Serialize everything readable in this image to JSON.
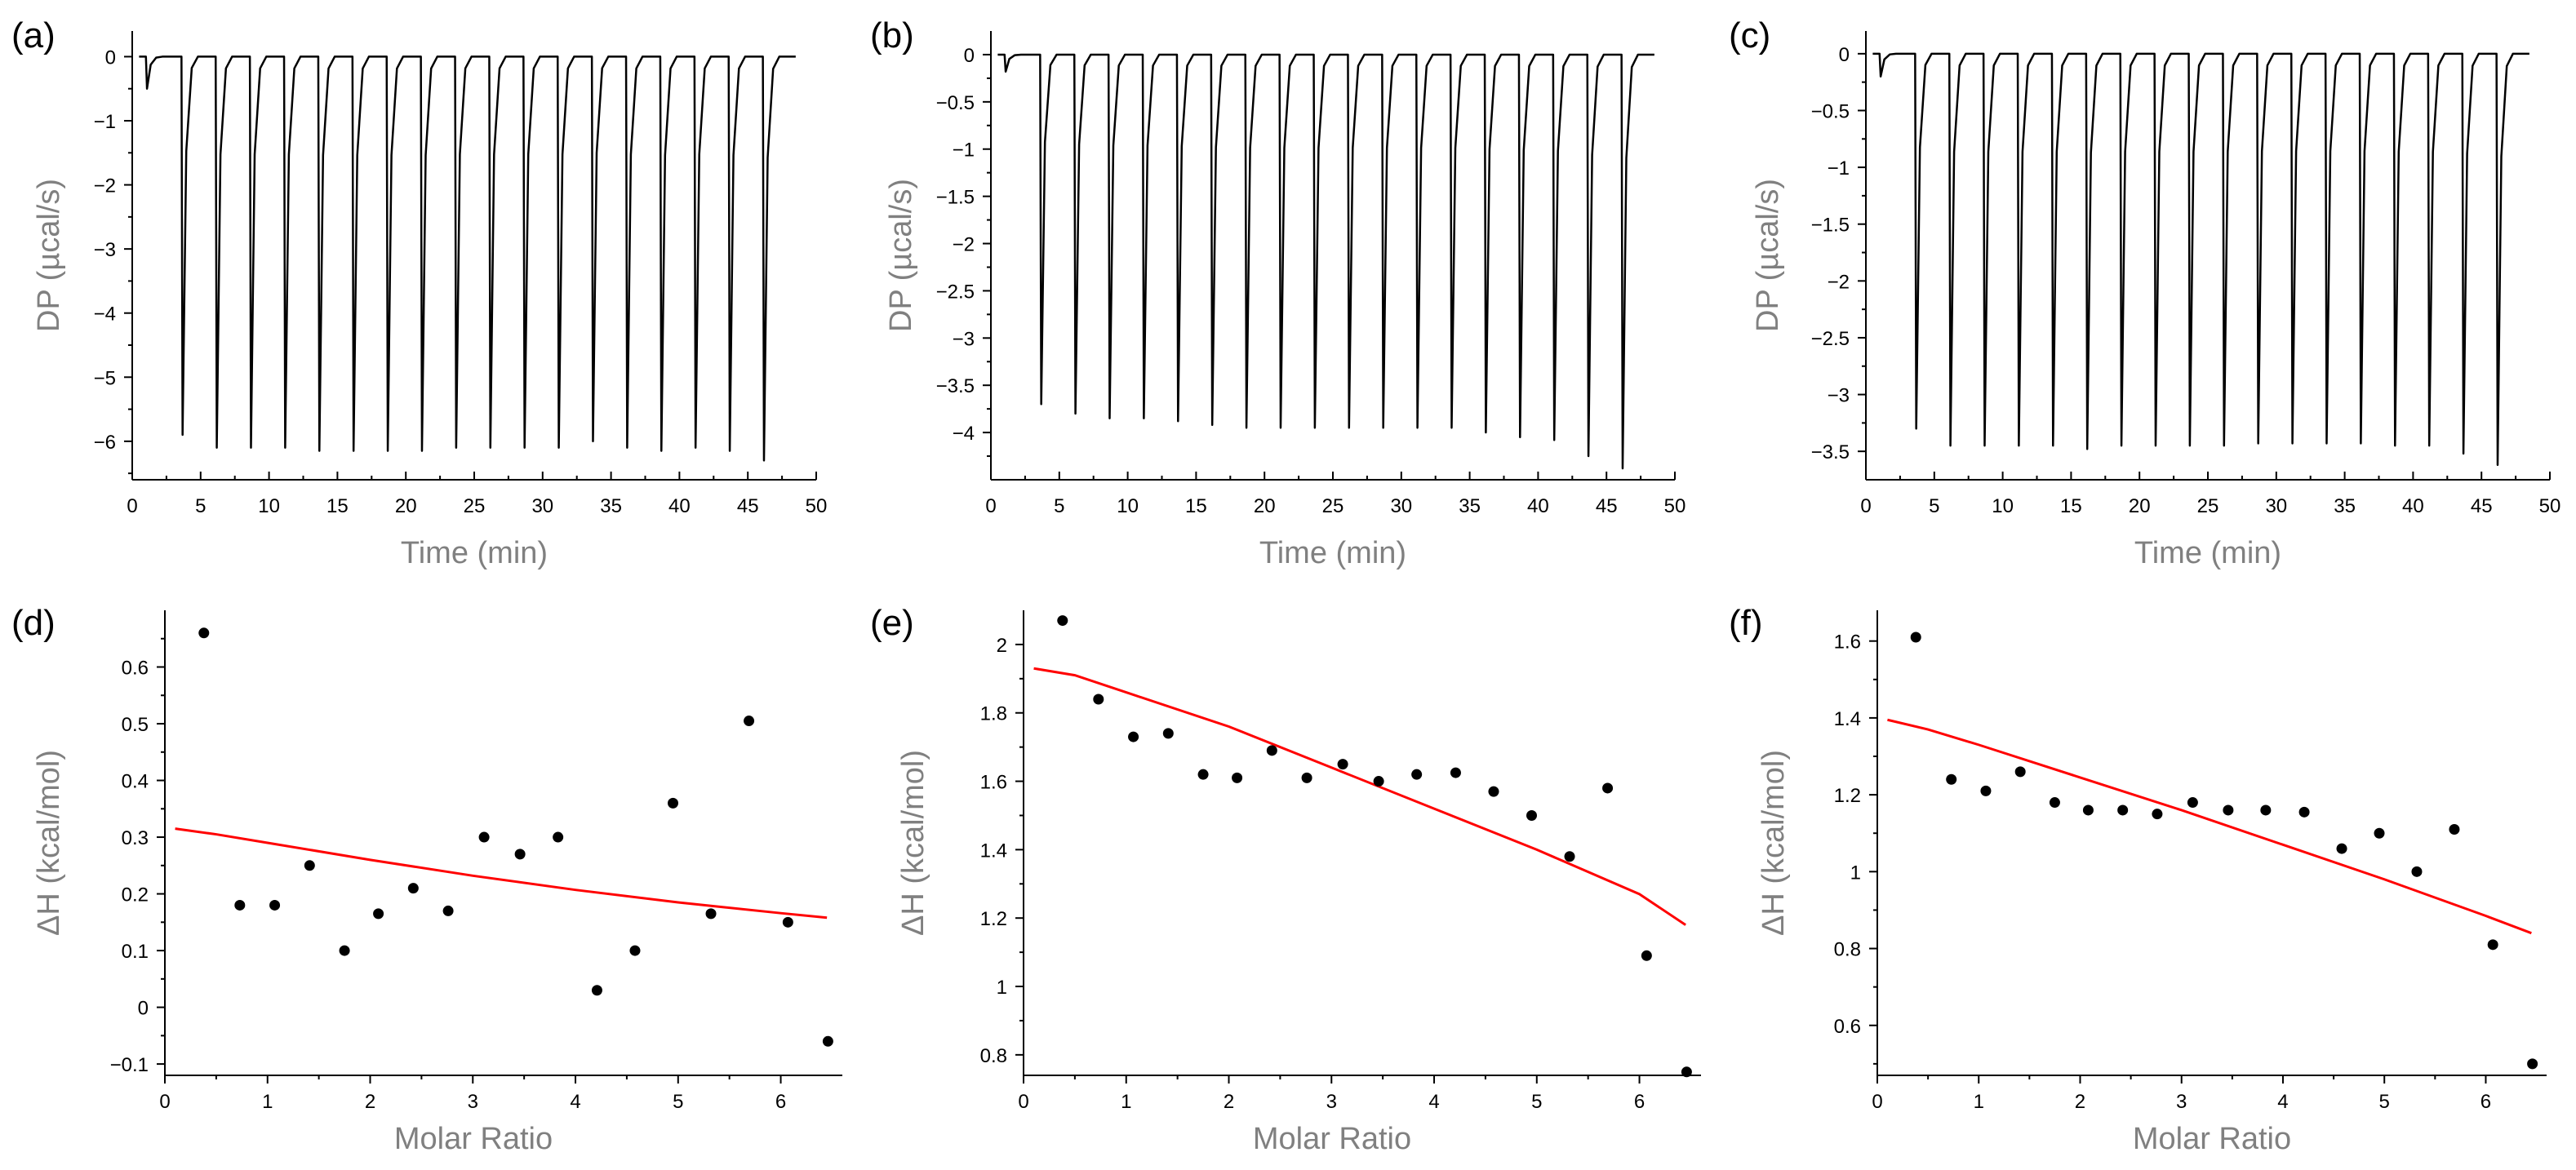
{
  "chart_data": [
    {
      "type": "line",
      "panel": "(a)",
      "xlabel": "Time (min)",
      "ylabel": "DP (µcal/s)",
      "xlim": [
        0,
        50
      ],
      "ylim": [
        -6.6,
        0.4
      ],
      "xticks": [
        0,
        5,
        10,
        15,
        20,
        25,
        30,
        35,
        40,
        45,
        50
      ],
      "yticks": [
        0,
        -1,
        -2,
        -3,
        -4,
        -5,
        -6
      ],
      "ytick_labels": [
        "0",
        "−1",
        "−2",
        "−3",
        "−4",
        "−5",
        "−6"
      ],
      "trace_end": 48.5,
      "injections": [
        {
          "t": 1.0,
          "peak": -0.5
        },
        {
          "t": 3.6,
          "peak": -5.9
        },
        {
          "t": 6.1,
          "peak": -6.1
        },
        {
          "t": 8.6,
          "peak": -6.1
        },
        {
          "t": 11.1,
          "peak": -6.1
        },
        {
          "t": 13.6,
          "peak": -6.15
        },
        {
          "t": 16.1,
          "peak": -6.15
        },
        {
          "t": 18.6,
          "peak": -6.15
        },
        {
          "t": 21.1,
          "peak": -6.15
        },
        {
          "t": 23.6,
          "peak": -6.1
        },
        {
          "t": 26.1,
          "peak": -6.1
        },
        {
          "t": 28.6,
          "peak": -6.1
        },
        {
          "t": 31.1,
          "peak": -6.1
        },
        {
          "t": 33.6,
          "peak": -6.0
        },
        {
          "t": 36.1,
          "peak": -6.1
        },
        {
          "t": 38.6,
          "peak": -6.15
        },
        {
          "t": 41.1,
          "peak": -6.1
        },
        {
          "t": 43.6,
          "peak": -6.15
        },
        {
          "t": 46.1,
          "peak": -6.3
        }
      ],
      "line_color": "#000000"
    },
    {
      "type": "line",
      "panel": "(b)",
      "xlabel": "Time (min)",
      "ylabel": "DP (µcal/s)",
      "xlim": [
        0,
        50
      ],
      "ylim": [
        -4.5,
        0.25
      ],
      "xticks": [
        0,
        5,
        10,
        15,
        20,
        25,
        30,
        35,
        40,
        45,
        50
      ],
      "yticks": [
        0,
        -0.5,
        -1,
        -1.5,
        -2,
        -2.5,
        -3,
        -3.5,
        -4
      ],
      "ytick_labels": [
        "0",
        "−0.5",
        "−1",
        "−1.5",
        "−2",
        "−2.5",
        "−3",
        "−3.5",
        "−4"
      ],
      "trace_end": 48.5,
      "injections": [
        {
          "t": 1.0,
          "peak": -0.18
        },
        {
          "t": 3.6,
          "peak": -3.7
        },
        {
          "t": 6.1,
          "peak": -3.8
        },
        {
          "t": 8.6,
          "peak": -3.85
        },
        {
          "t": 11.1,
          "peak": -3.85
        },
        {
          "t": 13.6,
          "peak": -3.88
        },
        {
          "t": 16.1,
          "peak": -3.92
        },
        {
          "t": 18.6,
          "peak": -3.95
        },
        {
          "t": 21.1,
          "peak": -3.95
        },
        {
          "t": 23.6,
          "peak": -3.95
        },
        {
          "t": 26.1,
          "peak": -3.95
        },
        {
          "t": 28.6,
          "peak": -3.95
        },
        {
          "t": 31.1,
          "peak": -3.95
        },
        {
          "t": 33.6,
          "peak": -3.95
        },
        {
          "t": 36.1,
          "peak": -4.0
        },
        {
          "t": 38.6,
          "peak": -4.05
        },
        {
          "t": 41.1,
          "peak": -4.08
        },
        {
          "t": 43.6,
          "peak": -4.25
        },
        {
          "t": 46.1,
          "peak": -4.38
        }
      ],
      "line_color": "#000000"
    },
    {
      "type": "line",
      "panel": "(c)",
      "xlabel": "Time (min)",
      "ylabel": "DP (µcal/s)",
      "xlim": [
        0,
        50
      ],
      "ylim": [
        -3.75,
        0.2
      ],
      "xticks": [
        0,
        5,
        10,
        15,
        20,
        25,
        30,
        35,
        40,
        45,
        50
      ],
      "yticks": [
        0,
        -0.5,
        -1,
        -1.5,
        -2,
        -2.5,
        -3,
        -3.5
      ],
      "ytick_labels": [
        "0",
        "−0.5",
        "−1",
        "−1.5",
        "−2",
        "−2.5",
        "−3",
        "−3.5"
      ],
      "trace_end": 48.5,
      "injections": [
        {
          "t": 1.0,
          "peak": -0.2
        },
        {
          "t": 3.6,
          "peak": -3.3
        },
        {
          "t": 6.1,
          "peak": -3.45
        },
        {
          "t": 8.6,
          "peak": -3.45
        },
        {
          "t": 11.1,
          "peak": -3.45
        },
        {
          "t": 13.6,
          "peak": -3.45
        },
        {
          "t": 16.1,
          "peak": -3.48
        },
        {
          "t": 18.6,
          "peak": -3.45
        },
        {
          "t": 21.1,
          "peak": -3.45
        },
        {
          "t": 23.6,
          "peak": -3.45
        },
        {
          "t": 26.1,
          "peak": -3.45
        },
        {
          "t": 28.6,
          "peak": -3.43
        },
        {
          "t": 31.1,
          "peak": -3.43
        },
        {
          "t": 33.6,
          "peak": -3.43
        },
        {
          "t": 36.1,
          "peak": -3.43
        },
        {
          "t": 38.6,
          "peak": -3.45
        },
        {
          "t": 41.1,
          "peak": -3.45
        },
        {
          "t": 43.6,
          "peak": -3.52
        },
        {
          "t": 46.1,
          "peak": -3.62
        }
      ],
      "line_color": "#000000"
    },
    {
      "type": "scatter",
      "panel": "(d)",
      "xlabel": "Molar Ratio",
      "ylabel": "ΔH (kcal/mol)",
      "xlim": [
        0,
        6.6
      ],
      "ylim": [
        -0.12,
        0.7
      ],
      "xticks": [
        0,
        1,
        2,
        3,
        4,
        5,
        6
      ],
      "yticks": [
        -0.1,
        0,
        0.1,
        0.2,
        0.3,
        0.4,
        0.5,
        0.6
      ],
      "ytick_labels": [
        "−0.1",
        "0",
        "0.1",
        "0.2",
        "0.3",
        "0.4",
        "0.5",
        "0.6"
      ],
      "points": {
        "x": [
          0.38,
          0.73,
          1.07,
          1.41,
          1.75,
          2.08,
          2.42,
          2.76,
          3.11,
          3.46,
          3.83,
          4.21,
          4.58,
          4.95,
          5.32,
          5.69,
          6.07,
          6.46
        ],
        "y": [
          0.66,
          0.18,
          0.18,
          0.25,
          0.1,
          0.165,
          0.21,
          0.17,
          0.3,
          0.27,
          0.3,
          0.03,
          0.1,
          0.36,
          0.165,
          0.505,
          0.15,
          -0.06
        ]
      },
      "fit": {
        "x": [
          0.1,
          0.5,
          1.0,
          2.0,
          3.0,
          4.0,
          5.0,
          6.0,
          6.45
        ],
        "y": [
          0.315,
          0.305,
          0.29,
          0.26,
          0.232,
          0.207,
          0.185,
          0.166,
          0.158
        ]
      },
      "point_color": "#000000",
      "fit_color": "#ff0000"
    },
    {
      "type": "scatter",
      "panel": "(e)",
      "xlabel": "Molar Ratio",
      "ylabel": "ΔH (kcal/mol)",
      "xlim": [
        0,
        6.6
      ],
      "ylim": [
        0.74,
        2.1
      ],
      "xticks": [
        0,
        1,
        2,
        3,
        4,
        5,
        6
      ],
      "yticks": [
        0.8,
        1,
        1.2,
        1.4,
        1.6,
        1.8,
        2
      ],
      "ytick_labels": [
        "0.8",
        "1",
        "1.2",
        "1.4",
        "1.6",
        "1.8",
        "2"
      ],
      "points": {
        "x": [
          0.38,
          0.73,
          1.07,
          1.41,
          1.75,
          2.08,
          2.42,
          2.76,
          3.11,
          3.46,
          3.83,
          4.21,
          4.58,
          4.95,
          5.32,
          5.69,
          6.07,
          6.46
        ],
        "y": [
          2.07,
          1.84,
          1.73,
          1.74,
          1.62,
          1.61,
          1.69,
          1.61,
          1.65,
          1.6,
          1.62,
          1.625,
          1.57,
          1.5,
          1.38,
          1.58,
          1.09,
          0.75
        ]
      },
      "fit": {
        "x": [
          0.1,
          0.5,
          1.0,
          2.0,
          3.0,
          4.0,
          5.0,
          6.0,
          6.45
        ],
        "y": [
          1.93,
          1.91,
          1.86,
          1.76,
          1.64,
          1.52,
          1.4,
          1.27,
          1.18
        ]
      },
      "point_color": "#000000",
      "fit_color": "#ff0000"
    },
    {
      "type": "scatter",
      "panel": "(f)",
      "xlabel": "Molar Ratio",
      "ylabel": "ΔH (kcal/mol)",
      "xlim": [
        0,
        6.6
      ],
      "ylim": [
        0.47,
        1.68
      ],
      "xticks": [
        0,
        1,
        2,
        3,
        4,
        5,
        6
      ],
      "yticks": [
        0.6,
        0.8,
        1,
        1.2,
        1.4,
        1.6
      ],
      "ytick_labels": [
        "0.6",
        "0.8",
        "1",
        "1.2",
        "1.4",
        "1.6"
      ],
      "points": {
        "x": [
          0.38,
          0.73,
          1.07,
          1.41,
          1.75,
          2.08,
          2.42,
          2.76,
          3.11,
          3.46,
          3.83,
          4.21,
          4.58,
          4.95,
          5.32,
          5.69,
          6.07,
          6.46
        ],
        "y": [
          1.61,
          1.24,
          1.21,
          1.26,
          1.18,
          1.16,
          1.16,
          1.15,
          1.18,
          1.16,
          1.16,
          1.155,
          1.06,
          1.1,
          1.0,
          1.11,
          0.81,
          0.5
        ]
      },
      "fit": {
        "x": [
          0.1,
          0.5,
          1.0,
          2.0,
          3.0,
          4.0,
          5.0,
          6.0,
          6.45
        ],
        "y": [
          1.395,
          1.37,
          1.33,
          1.245,
          1.16,
          1.07,
          0.98,
          0.885,
          0.84
        ]
      },
      "point_color": "#000000",
      "fit_color": "#ff0000"
    }
  ]
}
